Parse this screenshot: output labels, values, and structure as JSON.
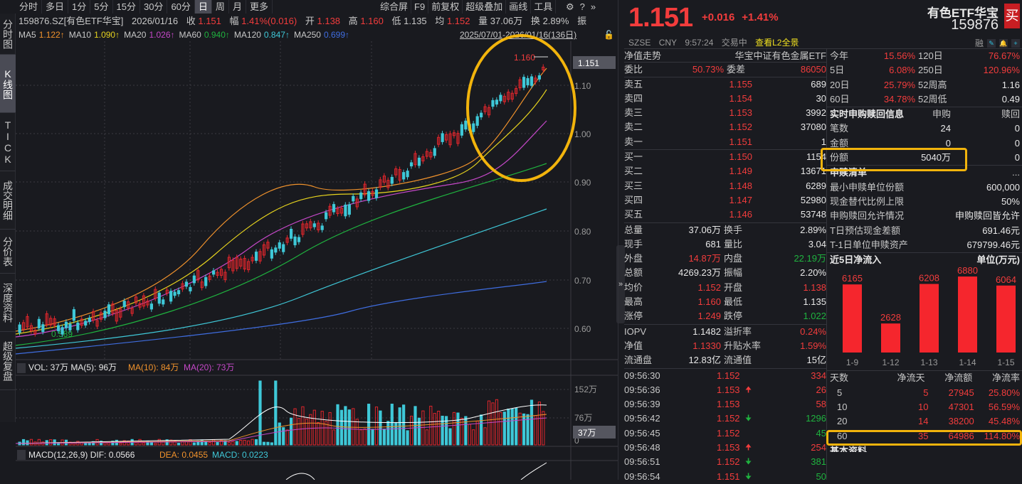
{
  "top_tabs": [
    "分时",
    "多日",
    "1分",
    "5分",
    "15分",
    "30分",
    "60分",
    "日",
    "周",
    "月",
    "更多"
  ],
  "active_tab": "日",
  "toolbar": [
    "综合屏",
    "F9",
    "前复权",
    "超级叠加",
    "画线",
    "工具"
  ],
  "toolbar_icons": [
    "gear-icon",
    "help-icon",
    "expand-icon"
  ],
  "side_nav": [
    "分时图",
    "K线图",
    "TICK",
    "成交明细",
    "分价表",
    "深度资料",
    "超级复盘"
  ],
  "info": {
    "symbol": "159876.SZ[有色ETF华宝]",
    "date": "2026/01/16",
    "close_label": "收",
    "close": "1.151",
    "chg_label": "幅",
    "chg": "1.41%(0.016)",
    "open_label": "开",
    "open": "1.138",
    "high_label": "高",
    "high": "1.160",
    "low_label": "低",
    "low": "1.135",
    "avg_label": "均",
    "avg": "1.152",
    "vol_label": "量",
    "vol": "37.06万",
    "turn_label": "换",
    "turn": "2.89%",
    "amp_label": "振"
  },
  "ma": [
    {
      "label": "MA5",
      "value": "1.122↑",
      "color": "#f0922c"
    },
    {
      "label": "MA10",
      "value": "1.090↑",
      "color": "#e6d31e"
    },
    {
      "label": "MA20",
      "value": "1.026↑",
      "color": "#c548c8"
    },
    {
      "label": "MA60",
      "value": "0.940↑",
      "color": "#1fb33f"
    },
    {
      "label": "MA120",
      "value": "0.847↑",
      "color": "#3fc8d8"
    },
    {
      "label": "MA250",
      "value": "0.699↑",
      "color": "#3f6de0"
    }
  ],
  "date_range": "2025/07/01-2026/01/16(136日)",
  "price_axis": [
    "1.10",
    "1.00",
    "0.90",
    "0.80",
    "0.70",
    "0.60"
  ],
  "current_price_tag": "1.151",
  "high_marker": "1.160",
  "low_marker": "0.589",
  "volume": {
    "label": "VOL: 37万",
    "ma5": "MA(5): 96万",
    "ma10": "MA(10): 84万",
    "ma20": "MA(20): 73万",
    "axis": [
      "152万",
      "76万",
      "0"
    ],
    "tag": "37万"
  },
  "macd": {
    "label": "MACD(12,26,9)",
    "dif": "DIF: 0.0566",
    "dea": "DEA: 0.0455",
    "macd": "MACD: 0.0223"
  },
  "quote": {
    "price": "1.151",
    "change": "+0.016",
    "pct": "+1.41%",
    "exchange": "SZSE",
    "currency": "CNY",
    "time": "9:57:24",
    "status": "交易中",
    "l2_link": "查看L2全景",
    "name": "有色ETF华宝",
    "code": "159876",
    "buy": "买",
    "rong": "融"
  },
  "nav_row": {
    "label": "净值走势",
    "fund": "华宝中证有色金属ETF"
  },
  "ratio": {
    "label1": "委比",
    "v1": "50.73%",
    "label2": "委差",
    "v2": "86050"
  },
  "asks": [
    {
      "label": "卖五",
      "price": "1.155",
      "vol": "689"
    },
    {
      "label": "卖四",
      "price": "1.154",
      "vol": "30"
    },
    {
      "label": "卖三",
      "price": "1.153",
      "vol": "3992"
    },
    {
      "label": "卖二",
      "price": "1.152",
      "vol": "37080"
    },
    {
      "label": "卖一",
      "price": "1.151",
      "vol": "1"
    }
  ],
  "bids": [
    {
      "label": "买一",
      "price": "1.150",
      "vol": "1154"
    },
    {
      "label": "买二",
      "price": "1.149",
      "vol": "13671"
    },
    {
      "label": "买三",
      "price": "1.148",
      "vol": "6289"
    },
    {
      "label": "买四",
      "price": "1.147",
      "vol": "52980"
    },
    {
      "label": "买五",
      "price": "1.146",
      "vol": "53748"
    }
  ],
  "stats": [
    [
      "总量",
      "37.06万",
      "white",
      "换手",
      "2.89%",
      "white"
    ],
    [
      "现手",
      "681",
      "white",
      "量比",
      "3.04",
      "white"
    ],
    [
      "外盘",
      "14.87万",
      "red",
      "内盘",
      "22.19万",
      "green"
    ],
    [
      "总额",
      "4269.23万",
      "white",
      "振幅",
      "2.20%",
      "white"
    ],
    [
      "均价",
      "1.152",
      "red",
      "开盘",
      "1.138",
      "red"
    ],
    [
      "最高",
      "1.160",
      "red",
      "最低",
      "1.135",
      "white"
    ],
    [
      "涨停",
      "1.249",
      "red",
      "跌停",
      "1.022",
      "green"
    ]
  ],
  "etf_stats": [
    [
      "IOPV",
      "1.1482",
      "white",
      "溢折率",
      "0.24%",
      "red"
    ],
    [
      "净值",
      "1.1330",
      "red",
      "升贴水率",
      "1.59%",
      "red"
    ],
    [
      "流通盘",
      "12.83亿",
      "white",
      "流通值",
      "15亿",
      "white"
    ]
  ],
  "ticks": [
    {
      "time": "09:56:30",
      "price": "1.152",
      "arrow": "",
      "vol": "334",
      "vc": "red"
    },
    {
      "time": "09:56:36",
      "price": "1.153",
      "arrow": "up",
      "vol": "26",
      "vc": "red"
    },
    {
      "time": "09:56:39",
      "price": "1.153",
      "arrow": "",
      "vol": "58",
      "vc": "red"
    },
    {
      "time": "09:56:42",
      "price": "1.152",
      "arrow": "down",
      "vol": "1296",
      "vc": "green"
    },
    {
      "time": "09:56:45",
      "price": "1.152",
      "arrow": "",
      "vol": "45",
      "vc": "green"
    },
    {
      "time": "09:56:48",
      "price": "1.153",
      "arrow": "up",
      "vol": "254",
      "vc": "red"
    },
    {
      "time": "09:56:51",
      "price": "1.152",
      "arrow": "down",
      "vol": "381",
      "vc": "green"
    },
    {
      "time": "09:56:54",
      "price": "1.151",
      "arrow": "down",
      "vol": "50",
      "vc": "green"
    }
  ],
  "returns": [
    [
      "今年",
      "15.56%",
      "120日",
      "76.67%"
    ],
    [
      "5日",
      "6.08%",
      "250日",
      "120.96%"
    ],
    [
      "20日",
      "25.79%",
      "52周高",
      "1.16"
    ],
    [
      "60日",
      "34.78%",
      "52周低",
      "0.49"
    ]
  ],
  "subscription": {
    "title": "实时申购赎回信息",
    "col1": "申购",
    "col2": "赎回",
    "rows": [
      [
        "笔数",
        "24",
        "0"
      ],
      [
        "金额",
        "0",
        "0"
      ],
      [
        "份额",
        "5040万",
        "0"
      ]
    ]
  },
  "pcf": {
    "title": "申赎清单",
    "more": "...",
    "rows": [
      [
        "最小申赎单位份额",
        "600,000"
      ],
      [
        "现金替代比例上限",
        "50%"
      ],
      [
        "申购赎回允许情况",
        "申购赎回皆允许"
      ],
      [
        "T日预估现金差额",
        "691.46元"
      ],
      [
        "T-1日单位申赎资产",
        "679799.46元"
      ]
    ]
  },
  "flow": {
    "title": "近5日净流入",
    "unit": "单位(万元)"
  },
  "flow_table": {
    "headers": [
      "天数",
      "净流天",
      "净流额",
      "净流率"
    ],
    "rows": [
      [
        "5",
        "5",
        "27945",
        "25.80%"
      ],
      [
        "10",
        "10",
        "47301",
        "56.59%"
      ],
      [
        "20",
        "14",
        "38200",
        "45.48%"
      ],
      [
        "60",
        "35",
        "64986",
        "114.80%"
      ]
    ]
  },
  "bottom_cut": "基本资料",
  "chart_data": {
    "type": "bar",
    "title": "近5日净流入",
    "ylabel": "单位(万元)",
    "categories": [
      "1-9",
      "1-12",
      "1-13",
      "1-14",
      "1-15"
    ],
    "values": [
      6165,
      2628,
      6208,
      6880,
      6064
    ],
    "color": "#f5262d"
  },
  "collapse_btn": "»"
}
